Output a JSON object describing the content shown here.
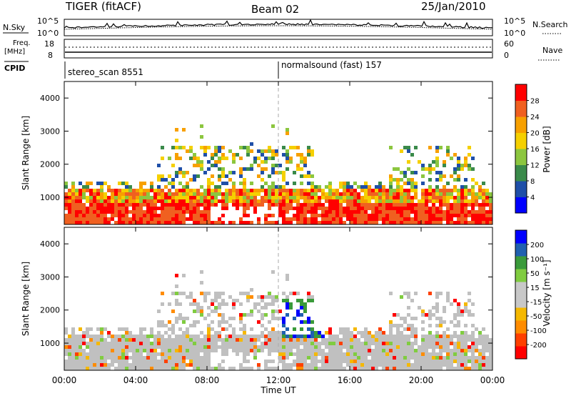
{
  "header": {
    "radar": "TIGER (fitACF)",
    "beam": "Beam 02",
    "date": "25/Jan/2010"
  },
  "aux_panels": {
    "nsky_label": "N.Sky",
    "nsky_ticks": [
      "10^5",
      "10^0"
    ],
    "nsearch_label": "N.Search",
    "freq_label": "Freq.",
    "freq_unit": "[MHz]",
    "freq_ticks": [
      "18",
      "8"
    ],
    "nave_label": "Nave",
    "nave_ticks": [
      "60",
      "0"
    ],
    "cpid_label": "CPID",
    "cpid_segments": [
      {
        "name": "stereo_scan 8551",
        "start_hour": 0
      },
      {
        "name": "normalsound (fast) 157",
        "start_hour": 12
      }
    ]
  },
  "colors": {
    "power_scale": [
      "#0000ff",
      "#1f4fa8",
      "#3a8a4a",
      "#8cc63f",
      "#f5d000",
      "#f7a000",
      "#f06020",
      "#ff0000"
    ],
    "velocity_scale": [
      "#ff0000",
      "#ff4000",
      "#ff8c00",
      "#f5b800",
      "#c8c8c8",
      "#c8c8c8",
      "#80cc40",
      "#3a9a3a",
      "#2060b0",
      "#0000ff"
    ],
    "ground_scatter": "#c0c0c0"
  },
  "chart_data": [
    {
      "type": "heatmap",
      "title": "",
      "xlabel": "",
      "ylabel": "Slant Range [km]",
      "xlim": [
        0,
        24
      ],
      "ylim": [
        180,
        4500
      ],
      "x_ticks": [
        "00:00",
        "04:00",
        "08:00",
        "12:00",
        "16:00",
        "20:00",
        "00:00"
      ],
      "y_ticks": [
        "1000",
        "2000",
        "3000",
        "4000"
      ],
      "colorbar": {
        "label": "Power [dB]",
        "range": [
          0,
          32
        ],
        "ticks": [
          "28",
          "24",
          "20",
          "16",
          "12",
          "8",
          "4"
        ]
      }
    },
    {
      "type": "heatmap",
      "title": "",
      "xlabel": "Time UT",
      "ylabel": "Slant Range [km]",
      "xlim": [
        0,
        24
      ],
      "ylim": [
        180,
        4500
      ],
      "x_ticks": [
        "00:00",
        "04:00",
        "08:00",
        "12:00",
        "16:00",
        "20:00",
        "00:00"
      ],
      "y_ticks": [
        "1000",
        "2000",
        "3000",
        "4000"
      ],
      "colorbar": {
        "label": "Velocity [m s⁻¹]",
        "range": [
          -250,
          250
        ],
        "ticks": [
          "200",
          "100",
          "50",
          "15",
          "-15",
          "-50",
          "-100",
          "-200"
        ]
      }
    }
  ]
}
